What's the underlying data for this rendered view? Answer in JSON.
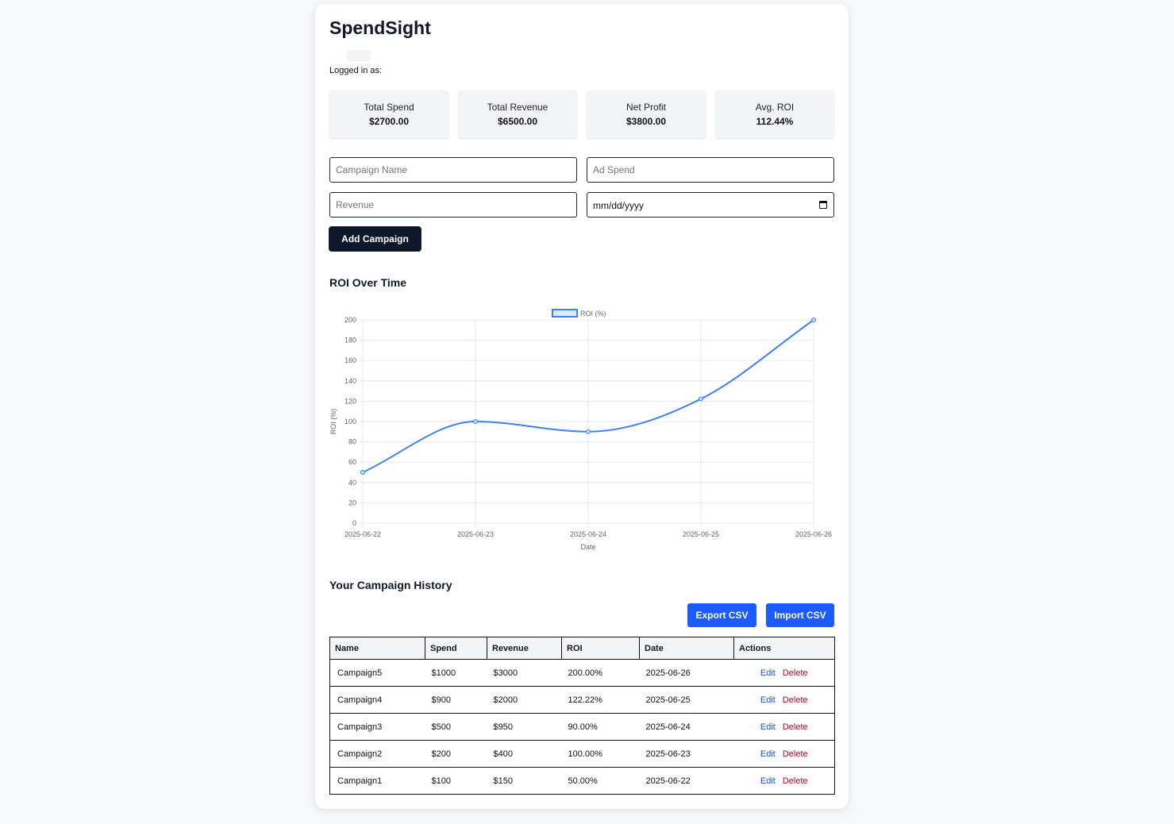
{
  "app": {
    "title": "SpendSight",
    "logged_in_label": "Logged in as:"
  },
  "stats": [
    {
      "label": "Total Spend",
      "value": "$2700.00"
    },
    {
      "label": "Total Revenue",
      "value": "$6500.00"
    },
    {
      "label": "Net Profit",
      "value": "$3800.00"
    },
    {
      "label": "Avg. ROI",
      "value": "112.44%"
    }
  ],
  "form": {
    "campaign_name_placeholder": "Campaign Name",
    "ad_spend_placeholder": "Ad Spend",
    "revenue_placeholder": "Revenue",
    "date_value": "mm/dd/yyyy",
    "add_button": "Add Campaign"
  },
  "chart_section": {
    "title": "ROI Over Time"
  },
  "chart_data": {
    "type": "line",
    "title": "",
    "xlabel": "Date",
    "ylabel": "ROI (%)",
    "categories": [
      "2025-06-22",
      "2025-06-23",
      "2025-06-24",
      "2025-06-25",
      "2025-06-26"
    ],
    "series": [
      {
        "name": "ROI (%)",
        "values": [
          50,
          100,
          90,
          122.22,
          200
        ],
        "color": "#3b82f6"
      }
    ],
    "ylim": [
      0,
      200
    ],
    "yticks": [
      0,
      20,
      40,
      60,
      80,
      100,
      120,
      140,
      160,
      180,
      200
    ],
    "grid": true,
    "legend": "top-center"
  },
  "history": {
    "title": "Your Campaign History",
    "export_button": "Export CSV",
    "import_button": "Import CSV",
    "columns": [
      "Name",
      "Spend",
      "Revenue",
      "ROI",
      "Date",
      "Actions"
    ],
    "edit_label": "Edit",
    "delete_label": "Delete",
    "rows": [
      {
        "name": "Campaign5",
        "spend": "$1000",
        "revenue": "$3000",
        "roi": "200.00%",
        "date": "2025-06-26"
      },
      {
        "name": "Campaign4",
        "spend": "$900",
        "revenue": "$2000",
        "roi": "122.22%",
        "date": "2025-06-25"
      },
      {
        "name": "Campaign3",
        "spend": "$500",
        "revenue": "$950",
        "roi": "90.00%",
        "date": "2025-06-24"
      },
      {
        "name": "Campaign2",
        "spend": "$200",
        "revenue": "$400",
        "roi": "100.00%",
        "date": "2025-06-23"
      },
      {
        "name": "Campaign1",
        "spend": "$100",
        "revenue": "$150",
        "roi": "50.00%",
        "date": "2025-06-22"
      }
    ]
  }
}
